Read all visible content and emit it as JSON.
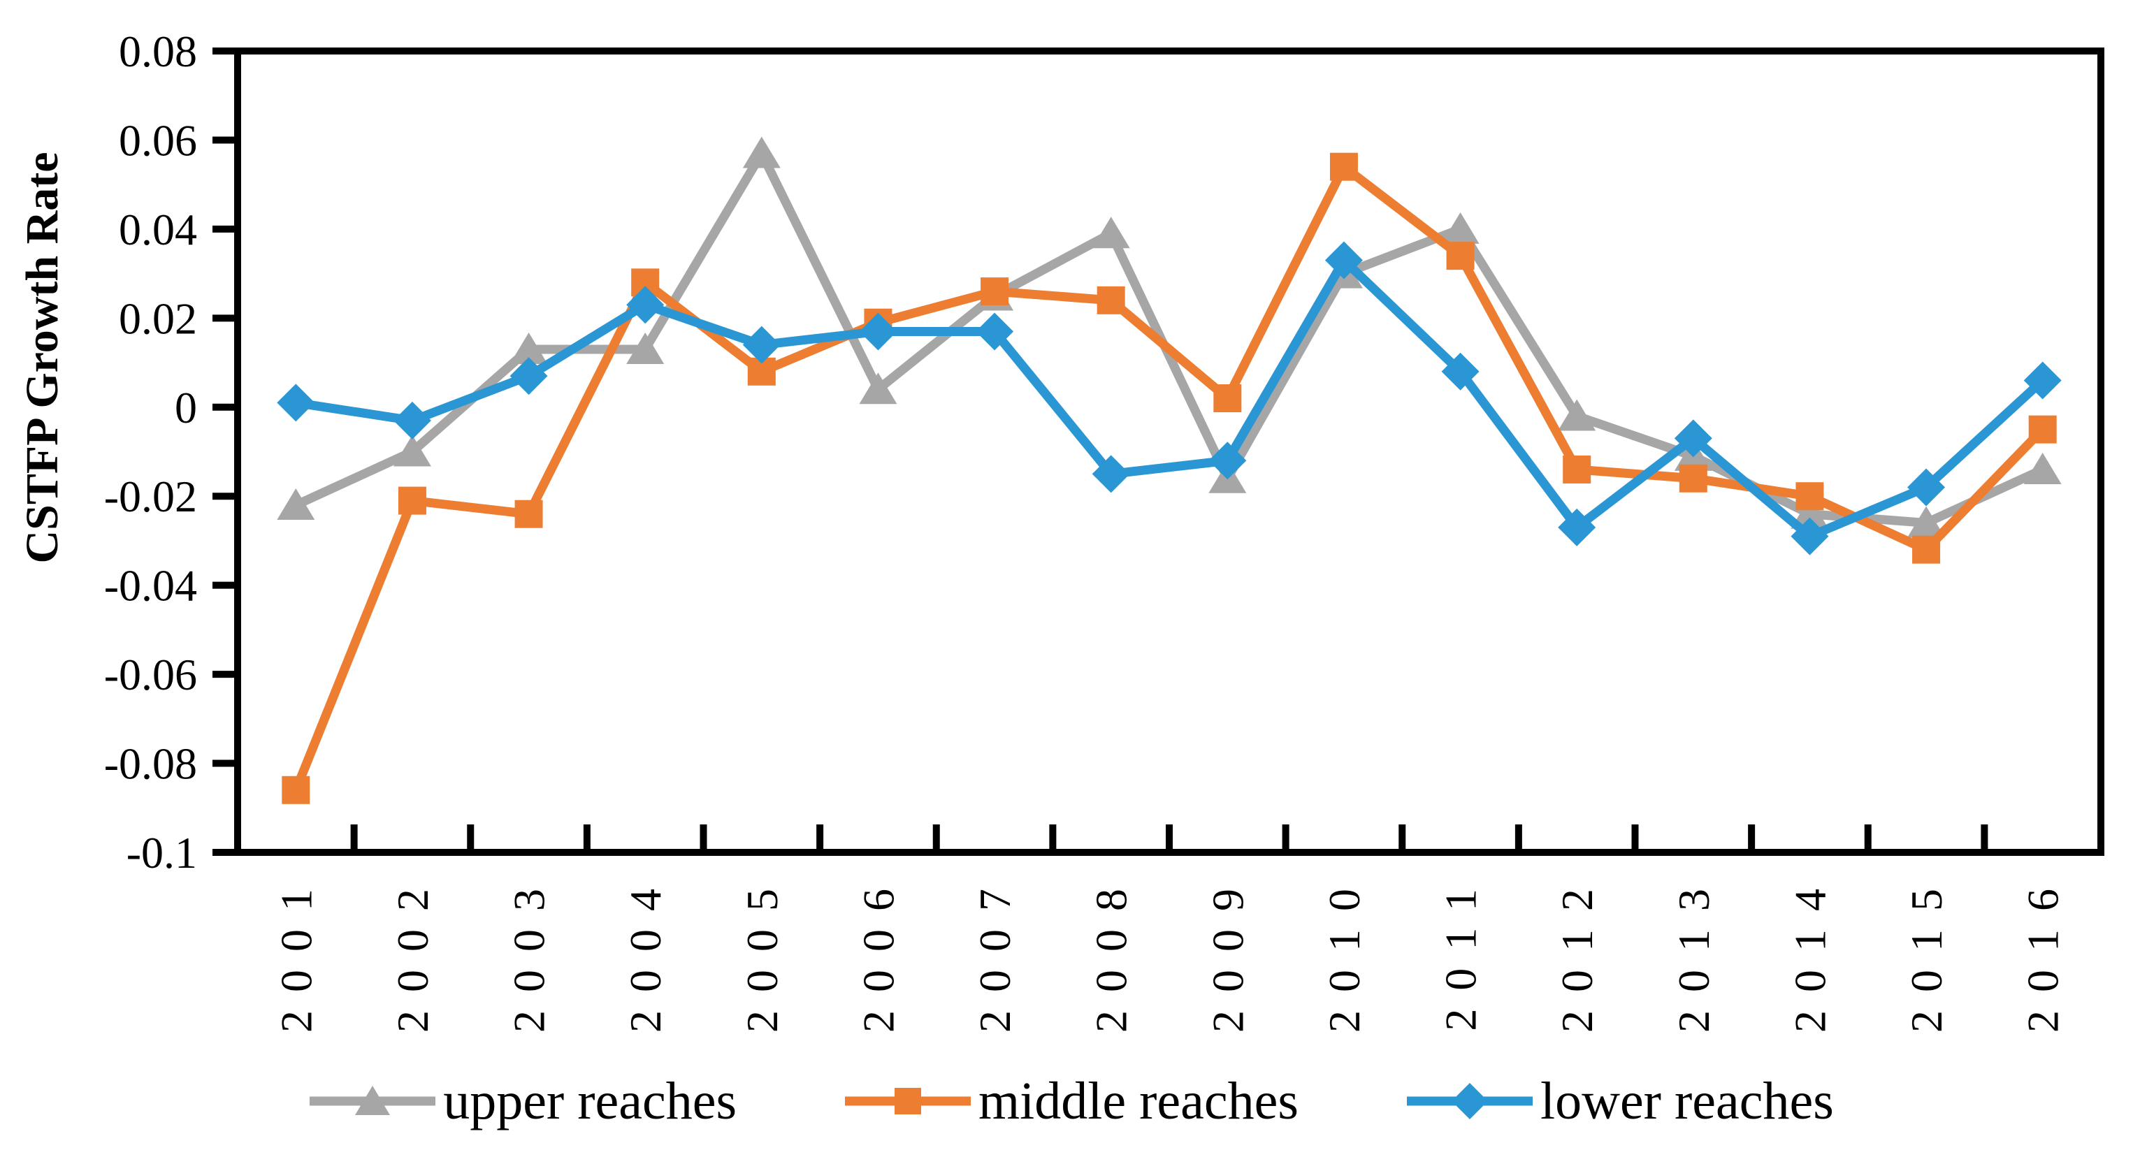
{
  "chart_data": {
    "type": "line",
    "title": "",
    "ylabel": "CSTFP Growth Rate",
    "xlabel": "",
    "categories": [
      "2001",
      "2002",
      "2003",
      "2004",
      "2005",
      "2006",
      "2007",
      "2008",
      "2009",
      "2010",
      "2011",
      "2012",
      "2013",
      "2014",
      "2015",
      "2016"
    ],
    "ylim": [
      -0.1,
      0.08
    ],
    "ytick_step": 0.02,
    "ytick_labels": [
      "0.08",
      "0.06",
      "0.04",
      "0.02",
      "0",
      "-0.02",
      "-0.04",
      "-0.06",
      "-0.08",
      "-0.1"
    ],
    "grid": "off",
    "legend_position": "bottom-center",
    "axis_color": "#000000",
    "series": [
      {
        "name": "upper reaches",
        "marker": "triangle",
        "color": "#A6A6A6",
        "values": [
          -0.022,
          -0.01,
          0.013,
          0.013,
          0.057,
          0.004,
          0.025,
          0.039,
          -0.016,
          0.03,
          0.04,
          -0.002,
          -0.011,
          -0.024,
          -0.026,
          -0.014
        ]
      },
      {
        "name": "middle reaches",
        "marker": "square",
        "color": "#ED7D31",
        "values": [
          -0.086,
          -0.021,
          -0.024,
          0.028,
          0.008,
          0.019,
          0.026,
          0.024,
          0.002,
          0.054,
          0.034,
          -0.014,
          -0.016,
          -0.02,
          -0.032,
          -0.005
        ]
      },
      {
        "name": "lower reaches",
        "marker": "diamond",
        "color": "#2A97D4",
        "values": [
          0.001,
          -0.003,
          0.007,
          0.023,
          0.014,
          0.017,
          0.017,
          -0.015,
          -0.012,
          0.033,
          0.008,
          -0.027,
          -0.007,
          -0.029,
          -0.018,
          0.006
        ]
      }
    ]
  }
}
